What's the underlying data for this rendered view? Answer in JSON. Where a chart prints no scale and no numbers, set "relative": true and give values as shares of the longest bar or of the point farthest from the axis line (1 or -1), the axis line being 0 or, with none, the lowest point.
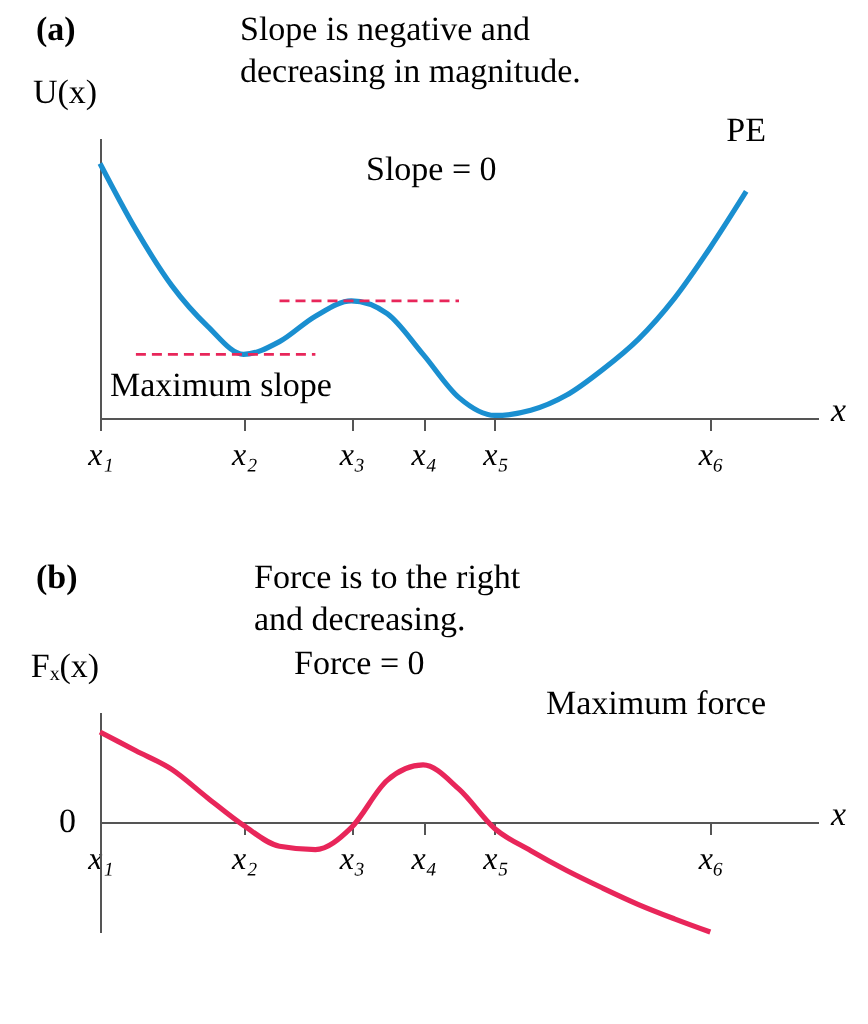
{
  "chart_data": [
    {
      "type": "line",
      "title": "(a)",
      "ylabel": "U(x)",
      "xlabel": "x",
      "relative": true,
      "marker": "none",
      "categories": [
        "x₁",
        null,
        null,
        null,
        "x₂",
        null,
        null,
        "x₃",
        null,
        "x₄",
        null,
        "x₅",
        null,
        null,
        null,
        null,
        null,
        "x₆",
        null,
        null,
        null
      ],
      "annotations": [
        "Slope is negative and\ndecreasing in magnitude.",
        "Slope = 0",
        "Maximum slope"
      ],
      "series": [
        {
          "name": "PE",
          "color": "#1a8fd0",
          "values": [
            1,
            0.74,
            0.52,
            0.36,
            0.25,
            0.3,
            0.4,
            0.46,
            0.41,
            0.25,
            0.08,
            0.01,
            0.03,
            0.09,
            0.19,
            0.31,
            0.47,
            0.67,
            0.89,
            null,
            null
          ]
        },
        {
          "color": "#e8265a",
          "line_style": "dashed",
          "values": [
            null,
            0.25,
            0.25,
            0.25,
            0.25,
            0.25,
            0.25,
            null,
            null,
            null,
            null,
            null,
            null,
            null,
            null,
            null,
            null,
            null,
            null,
            null,
            null
          ]
        },
        {
          "color": "#e8265a",
          "line_style": "dashed",
          "values": [
            null,
            null,
            null,
            null,
            null,
            0.46,
            0.46,
            0.46,
            0.46,
            0.46,
            0.46,
            null,
            null,
            null,
            null,
            null,
            null,
            null,
            null,
            null,
            null
          ]
        }
      ]
    },
    {
      "type": "line",
      "title": "(b)",
      "ylabel": "Fₓ(x)",
      "xlabel": "x",
      "relative": true,
      "marker": "none",
      "categories": [
        "x₁",
        null,
        null,
        null,
        "x₂",
        null,
        null,
        "x₃",
        null,
        "x₄",
        null,
        "x₅",
        null,
        null,
        null,
        null,
        null,
        "x₆",
        null,
        null,
        null
      ],
      "annotations": [
        "Force is to the right\nand decreasing.",
        "Force = 0",
        "Maximum force",
        "0"
      ],
      "series": [
        {
          "color": "#e8265a",
          "values": [
            0.82,
            0.65,
            0.48,
            0.22,
            -0.03,
            -0.22,
            -0.25,
            -0.05,
            0.38,
            0.52,
            0.3,
            -0.06,
            -0.26,
            -0.44,
            -0.6,
            -0.75,
            -0.88,
            -1,
            null,
            null,
            null
          ]
        }
      ]
    }
  ]
}
